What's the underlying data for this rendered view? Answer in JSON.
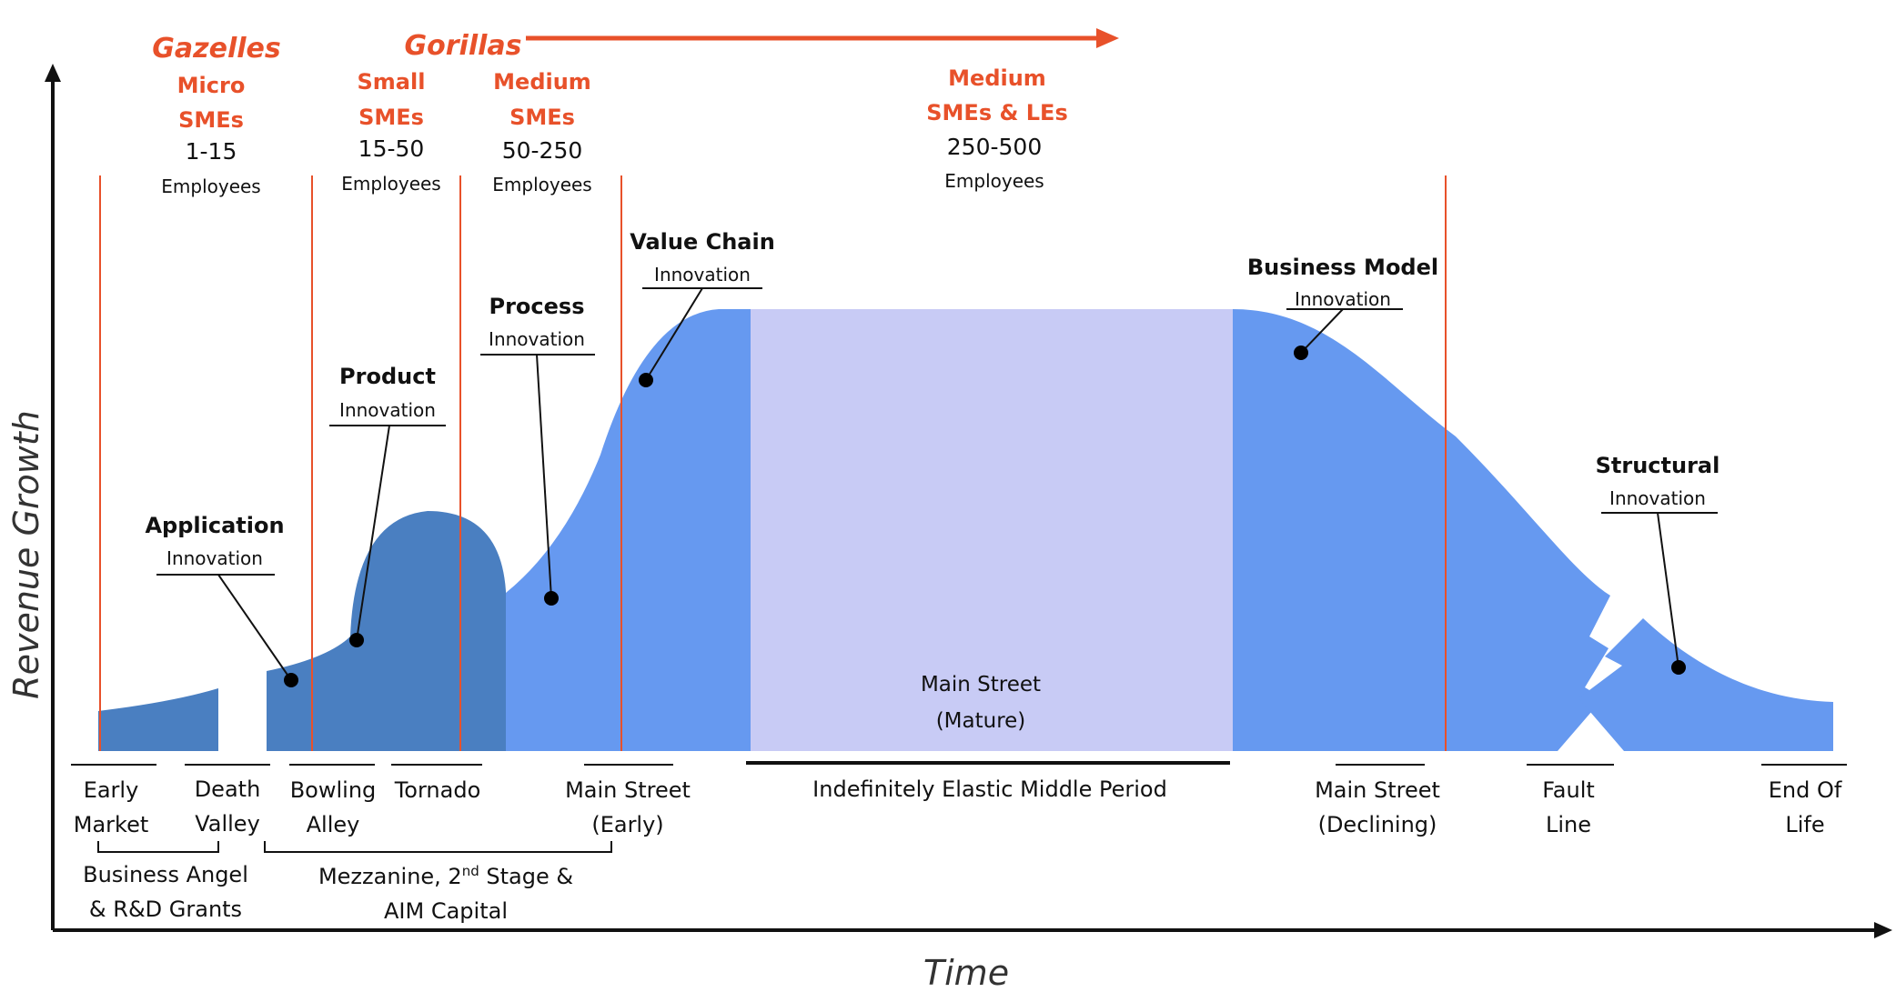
{
  "axes": {
    "y_label": "Revenue Growth",
    "x_label": "Time"
  },
  "segments": {
    "gazelles": "Gazelles",
    "gorillas": "Gorillas",
    "micro": {
      "l1": "Micro",
      "l2": "SMEs",
      "range": "1-15",
      "unit": "Employees"
    },
    "small": {
      "l1": "Small",
      "l2": "SMEs",
      "range": "15-50",
      "unit": "Employees"
    },
    "medium": {
      "l1": "Medium",
      "l2": "SMEs",
      "range": "50-250",
      "unit": "Employees"
    },
    "medium_le": {
      "l1": "Medium",
      "l2": "SMEs & LEs",
      "range": "250-500",
      "unit": "Employees"
    }
  },
  "innovations": {
    "application": {
      "title": "Application",
      "sub": "Innovation"
    },
    "product": {
      "title": "Product",
      "sub": "Innovation"
    },
    "process": {
      "title": "Process",
      "sub": "Innovation"
    },
    "value_chain": {
      "title": "Value Chain",
      "sub": "Innovation"
    },
    "business_model": {
      "title": "Business Model",
      "sub": "Innovation"
    },
    "structural": {
      "title": "Structural",
      "sub": "Innovation"
    }
  },
  "main_street_mature": {
    "l1": "Main Street",
    "l2": "(Mature)"
  },
  "stages": {
    "early_market": {
      "l1": "Early",
      "l2": "Market"
    },
    "death_valley": {
      "l1": "Death",
      "l2": "Valley"
    },
    "bowling_alley": {
      "l1": "Bowling",
      "l2": "Alley"
    },
    "tornado": {
      "l1": "Tornado"
    },
    "main_street_early": {
      "l1": "Main Street",
      "l2": "(Early)"
    },
    "middle_period": {
      "l1": "Indefinitely Elastic Middle Period"
    },
    "main_street_declining": {
      "l1": "Main Street",
      "l2": "(Declining)"
    },
    "fault_line": {
      "l1": "Fault",
      "l2": "Line"
    },
    "end_of_life": {
      "l1": "End Of",
      "l2": "Life"
    }
  },
  "funding": {
    "angel": {
      "l1": "Business Angel",
      "l2": "& R&D Grants"
    },
    "mezzanine": {
      "l1a": "Mezzanine, 2",
      "sup": "nd",
      "l1b": " Stage &",
      "l2": "AIM Capital"
    }
  },
  "colors": {
    "dark_blue": "#4a7fc1",
    "mid_blue": "#6699f0",
    "lavender": "#c8cbf5",
    "accent_orange": "#e8512a",
    "axis": "#111111"
  }
}
